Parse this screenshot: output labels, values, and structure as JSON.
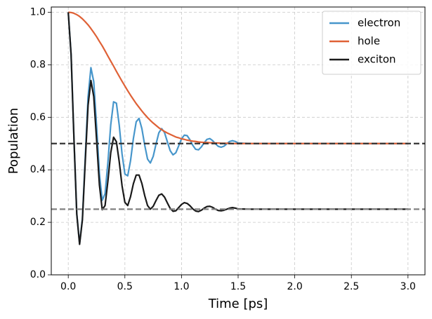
{
  "chart_data": {
    "type": "line",
    "xlabel": "Time [ps]",
    "ylabel": "Population",
    "x": [
      0,
      0.025,
      0.05,
      0.075,
      0.1,
      0.125,
      0.15,
      0.175,
      0.2,
      0.225,
      0.25,
      0.275,
      0.3,
      0.325,
      0.35,
      0.375,
      0.4,
      0.425,
      0.45,
      0.475,
      0.5,
      0.525,
      0.55,
      0.575,
      0.6,
      0.625,
      0.65,
      0.675,
      0.7,
      0.725,
      0.75,
      0.775,
      0.8,
      0.825,
      0.85,
      0.875,
      0.9,
      0.925,
      0.95,
      0.975,
      1.0,
      1.025,
      1.05,
      1.075,
      1.1,
      1.125,
      1.15,
      1.175,
      1.2,
      1.225,
      1.25,
      1.275,
      1.3,
      1.325,
      1.35,
      1.375,
      1.4,
      1.425,
      1.45,
      1.475,
      1.5,
      1.6,
      1.7,
      1.8,
      1.9,
      2.0,
      2.1,
      2.2,
      2.3,
      2.4,
      2.5,
      2.6,
      2.7,
      2.8,
      2.9,
      3.0
    ],
    "series": [
      {
        "name": "electron",
        "color": "#4796cb",
        "values": [
          1.0,
          0.84,
          0.523,
          0.234,
          0.118,
          0.215,
          0.447,
          0.679,
          0.789,
          0.736,
          0.568,
          0.385,
          0.284,
          0.309,
          0.428,
          0.571,
          0.659,
          0.654,
          0.57,
          0.46,
          0.384,
          0.377,
          0.435,
          0.519,
          0.583,
          0.596,
          0.557,
          0.494,
          0.441,
          0.426,
          0.451,
          0.498,
          0.541,
          0.557,
          0.542,
          0.507,
          0.473,
          0.457,
          0.465,
          0.491,
          0.518,
          0.532,
          0.53,
          0.514,
          0.493,
          0.478,
          0.476,
          0.487,
          0.503,
          0.516,
          0.519,
          0.511,
          0.499,
          0.489,
          0.486,
          0.49,
          0.499,
          0.508,
          0.511,
          0.508,
          0.502,
          0.5,
          0.5,
          0.5,
          0.5,
          0.5,
          0.5,
          0.5,
          0.5,
          0.5,
          0.5,
          0.5,
          0.5,
          0.5,
          0.5,
          0.5
        ]
      },
      {
        "name": "hole",
        "color": "#df6136",
        "values": [
          1.0,
          0.999,
          0.996,
          0.991,
          0.984,
          0.975,
          0.964,
          0.952,
          0.938,
          0.923,
          0.907,
          0.889,
          0.872,
          0.853,
          0.833,
          0.814,
          0.795,
          0.775,
          0.756,
          0.737,
          0.719,
          0.701,
          0.684,
          0.668,
          0.652,
          0.638,
          0.624,
          0.611,
          0.599,
          0.588,
          0.578,
          0.569,
          0.56,
          0.553,
          0.546,
          0.54,
          0.535,
          0.53,
          0.525,
          0.522,
          0.518,
          0.516,
          0.513,
          0.511,
          0.509,
          0.508,
          0.506,
          0.505,
          0.504,
          0.504,
          0.503,
          0.503,
          0.502,
          0.502,
          0.501,
          0.501,
          0.501,
          0.501,
          0.5,
          0.5,
          0.5,
          0.5,
          0.5,
          0.5,
          0.5,
          0.5,
          0.5,
          0.5,
          0.5,
          0.5,
          0.5,
          0.5,
          0.5,
          0.5,
          0.5,
          0.5
        ]
      },
      {
        "name": "exciton",
        "color": "#1a1a1a",
        "values": [
          1.0,
          0.839,
          0.521,
          0.232,
          0.116,
          0.21,
          0.431,
          0.646,
          0.74,
          0.679,
          0.515,
          0.342,
          0.248,
          0.264,
          0.357,
          0.465,
          0.524,
          0.507,
          0.431,
          0.339,
          0.276,
          0.264,
          0.298,
          0.347,
          0.38,
          0.38,
          0.348,
          0.302,
          0.264,
          0.25,
          0.261,
          0.283,
          0.303,
          0.308,
          0.296,
          0.274,
          0.253,
          0.242,
          0.244,
          0.256,
          0.268,
          0.275,
          0.272,
          0.263,
          0.251,
          0.243,
          0.241,
          0.246,
          0.254,
          0.26,
          0.261,
          0.257,
          0.25,
          0.245,
          0.244,
          0.246,
          0.25,
          0.254,
          0.256,
          0.254,
          0.251,
          0.25,
          0.25,
          0.25,
          0.25,
          0.25,
          0.25,
          0.25,
          0.25,
          0.25,
          0.25,
          0.25,
          0.25,
          0.25,
          0.25,
          0.25
        ]
      }
    ],
    "hlines": [
      {
        "value": 0.5,
        "color": "#333333"
      },
      {
        "value": 0.25,
        "color": "#808080"
      }
    ],
    "xlim": [
      -0.15,
      3.15
    ],
    "xticks": [
      {
        "value": 0,
        "label": "0.0"
      },
      0.5,
      {
        "value": 1,
        "label": "1.0"
      },
      1.5,
      {
        "value": 2,
        "label": "2.0"
      },
      2.5,
      {
        "value": 3,
        "label": "3.0"
      }
    ],
    "ylim": [
      0,
      1.02
    ],
    "yticks": [
      {
        "value": 0,
        "label": "0.0"
      },
      0.2,
      0.4,
      0.6,
      0.8,
      {
        "value": 1,
        "label": "1.0"
      }
    ],
    "grid": true,
    "legend": "upper right"
  }
}
